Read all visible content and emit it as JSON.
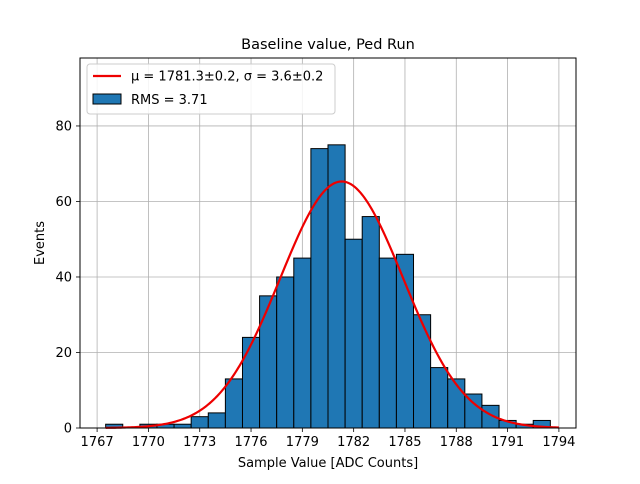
{
  "chart_data": {
    "type": "bar",
    "title": "Baseline value, Ped Run",
    "xlabel": "Sample Value [ADC Counts]",
    "ylabel": "Events",
    "xlim": [
      1766,
      1795
    ],
    "ylim": [
      0,
      98
    ],
    "x_ticks": [
      1767,
      1770,
      1773,
      1776,
      1779,
      1782,
      1785,
      1788,
      1791,
      1794
    ],
    "y_ticks": [
      0,
      20,
      40,
      60,
      80
    ],
    "grid": true,
    "legend_position": "upper-left",
    "histogram": {
      "name": "RMS = 3.71",
      "color": "#1f77b4",
      "edge_color": "#000000",
      "bin_edges": [
        1767.5,
        1768.5,
        1769.5,
        1770.5,
        1771.5,
        1772.5,
        1773.5,
        1774.5,
        1775.5,
        1776.5,
        1777.5,
        1778.5,
        1779.5,
        1780.5,
        1781.5,
        1782.5,
        1783.5,
        1784.5,
        1785.5,
        1786.5,
        1787.5,
        1788.5,
        1789.5,
        1790.5,
        1791.5,
        1792.5,
        1793.5
      ],
      "counts": [
        1,
        0,
        1,
        1,
        1,
        3,
        4,
        13,
        24,
        35,
        40,
        45,
        74,
        75,
        50,
        56,
        45,
        46,
        30,
        16,
        13,
        9,
        6,
        2,
        1,
        2
      ]
    },
    "fit": {
      "name": "μ = 1781.3±0.2, σ = 3.6±0.2",
      "color": "#ee0000",
      "mu": 1781.3,
      "sigma": 3.6,
      "amplitude": 65.3,
      "x_range": [
        1767.5,
        1794
      ]
    }
  }
}
